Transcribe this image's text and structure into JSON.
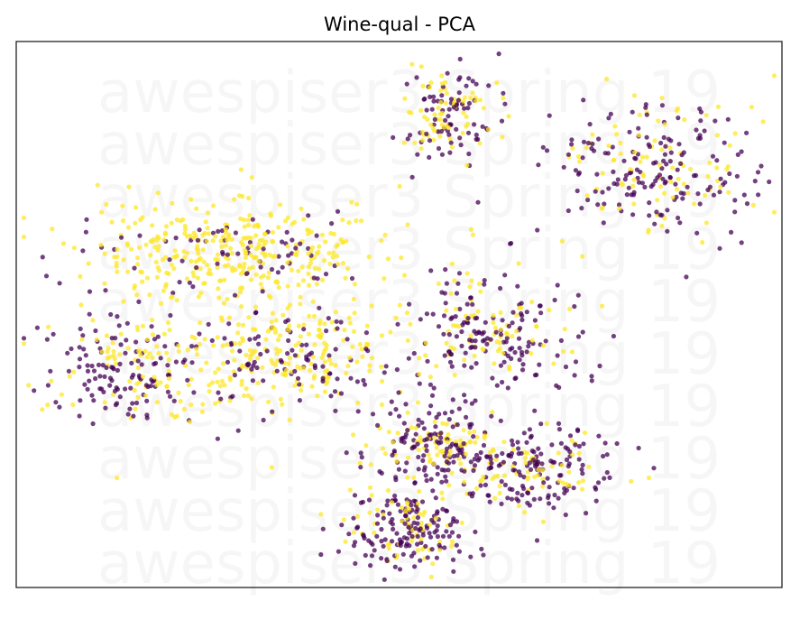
{
  "chart_data": {
    "type": "scatter",
    "title": "Wine-qual - PCA",
    "xlabel": "",
    "ylabel": "",
    "xlim": [
      0,
      100
    ],
    "ylim": [
      0,
      100
    ],
    "ticks_visible": false,
    "grid": false,
    "legend": "none",
    "watermark": "awespiser3 Spring 19",
    "watermark_repeat": 10,
    "marker_opacity": 0.75,
    "colors": {
      "class_0": "#440154",
      "class_1": "#fde725",
      "frame": "#222222"
    },
    "clusters": [
      {
        "name": "top-middle",
        "cx": 56.5,
        "cy": 87.0,
        "sx": 3.0,
        "sy": 4.5,
        "n": 150,
        "p_class1": 0.55
      },
      {
        "name": "top-right",
        "cx": 83.5,
        "cy": 77.0,
        "sx": 6.5,
        "sy": 6.0,
        "n": 260,
        "p_class1": 0.35
      },
      {
        "name": "left-upper-band",
        "cx": 28.0,
        "cy": 61.0,
        "sx": 10.0,
        "sy": 5.0,
        "n": 420,
        "p_class1": 0.8
      },
      {
        "name": "left-lower",
        "cx": 14.5,
        "cy": 40.0,
        "sx": 5.5,
        "sy": 5.0,
        "n": 220,
        "p_class1": 0.45
      },
      {
        "name": "center-left-ring",
        "cx": 36.0,
        "cy": 42.0,
        "sx": 7.0,
        "sy": 5.0,
        "n": 280,
        "p_class1": 0.65
      },
      {
        "name": "center-right",
        "cx": 62.0,
        "cy": 47.0,
        "sx": 5.5,
        "sy": 5.5,
        "n": 230,
        "p_class1": 0.35
      },
      {
        "name": "lower-middle",
        "cx": 55.0,
        "cy": 26.0,
        "sx": 4.5,
        "sy": 4.0,
        "n": 220,
        "p_class1": 0.45
      },
      {
        "name": "lower-right",
        "cx": 68.0,
        "cy": 22.0,
        "sx": 5.0,
        "sy": 4.0,
        "n": 200,
        "p_class1": 0.3
      },
      {
        "name": "bottom",
        "cx": 51.0,
        "cy": 10.5,
        "sx": 4.5,
        "sy": 3.5,
        "n": 220,
        "p_class1": 0.35
      }
    ]
  }
}
